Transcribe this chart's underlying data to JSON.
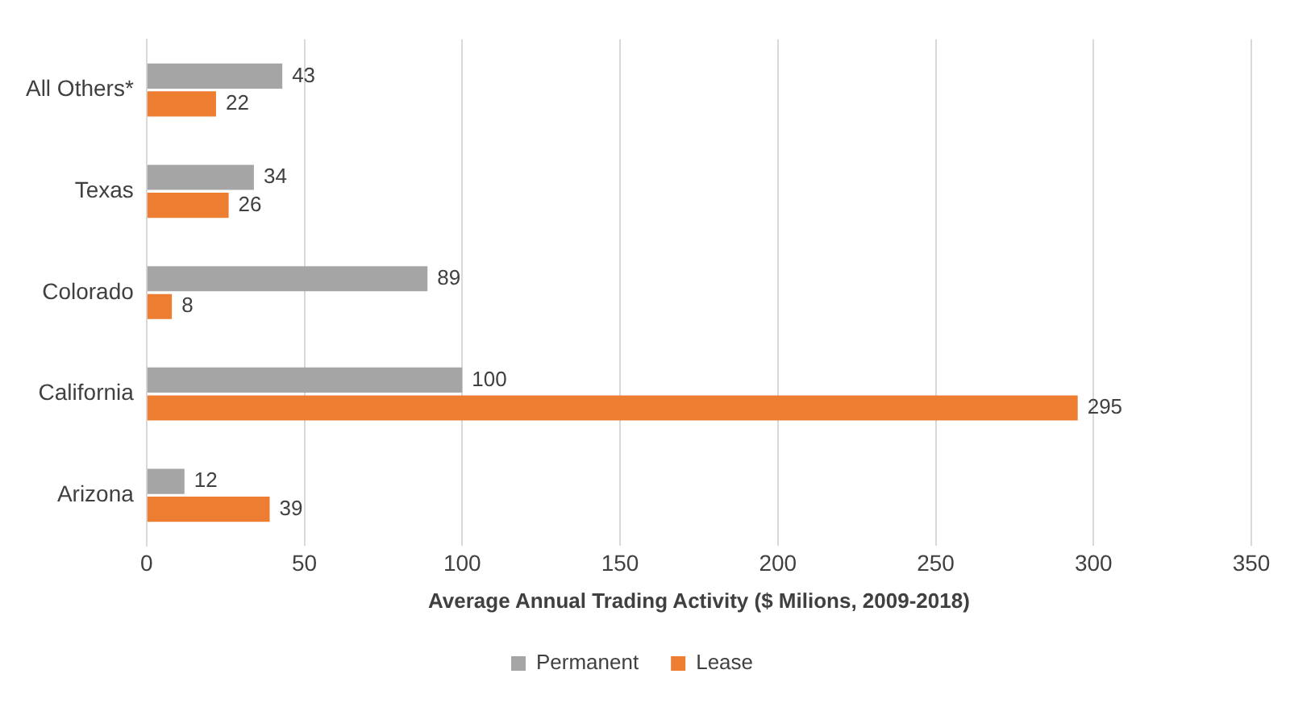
{
  "chart_data": {
    "type": "bar",
    "orientation": "horizontal",
    "categories": [
      "All Others*",
      "Texas",
      "Colorado",
      "California",
      "Arizona"
    ],
    "series": [
      {
        "name": "Permanent",
        "color": "#a5a5a5",
        "values": [
          43,
          34,
          89,
          100,
          12
        ]
      },
      {
        "name": "Lease",
        "color": "#ed7d31",
        "values": [
          22,
          26,
          8,
          295,
          39
        ]
      }
    ],
    "xlabel": "Average Annual Trading Activity ($ Milions, 2009-2018)",
    "xlim": [
      0,
      350
    ],
    "xticks": [
      0,
      50,
      100,
      150,
      200,
      250,
      300,
      350
    ],
    "grid": "x",
    "legend": "bottom",
    "data_labels": true
  }
}
